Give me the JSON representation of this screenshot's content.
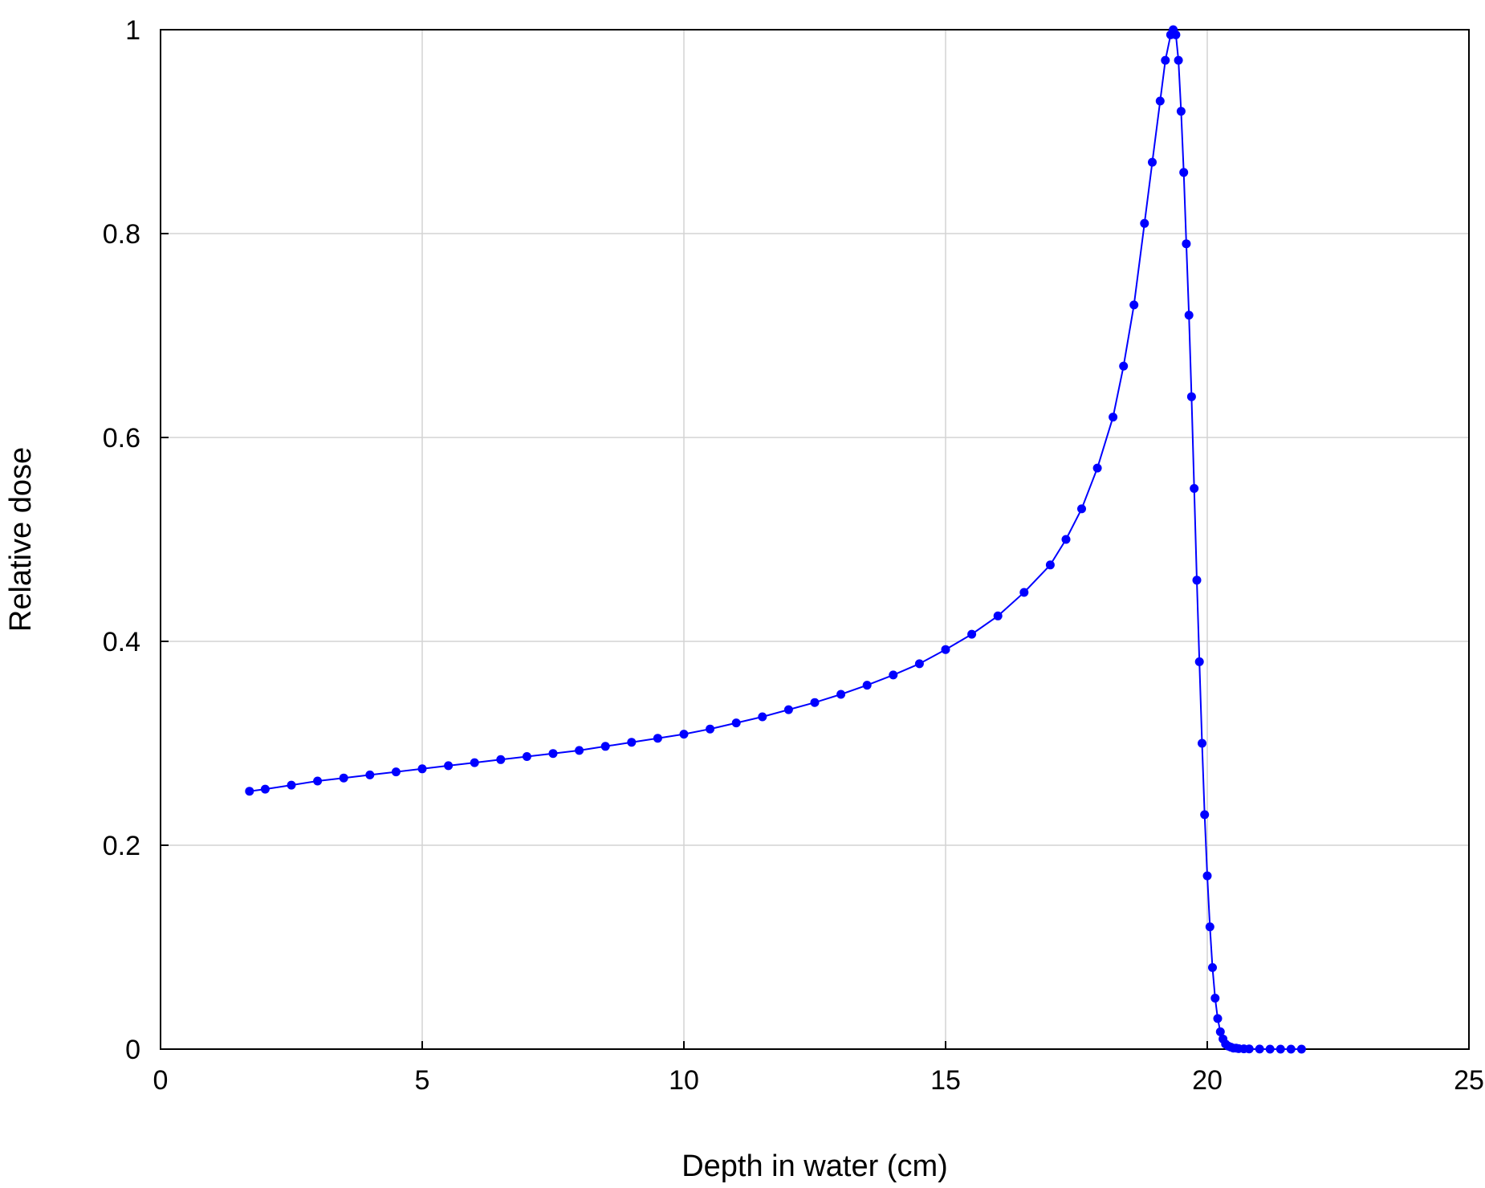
{
  "chart_data": {
    "type": "line",
    "title": "",
    "xlabel": "Depth in water (cm)",
    "ylabel": "Relative dose",
    "xlim": [
      0,
      25
    ],
    "ylim": [
      0,
      1
    ],
    "x_ticks": [
      "0",
      "5",
      "10",
      "15",
      "20",
      "25"
    ],
    "y_ticks": [
      "0",
      "0.2",
      "0.4",
      "0.6",
      "0.8",
      "1"
    ],
    "grid": true,
    "legend": "none",
    "series": [
      {
        "color": "#0000ff",
        "marker": "dot",
        "x": [
          1.7,
          2.0,
          2.5,
          3.0,
          3.5,
          4.0,
          4.5,
          5.0,
          5.5,
          6.0,
          6.5,
          7.0,
          7.5,
          8.0,
          8.5,
          9.0,
          9.5,
          10.0,
          10.5,
          11.0,
          11.5,
          12.0,
          12.5,
          13.0,
          13.5,
          14.0,
          14.5,
          15.0,
          15.5,
          16.0,
          16.5,
          17.0,
          17.3,
          17.6,
          17.9,
          18.2,
          18.4,
          18.6,
          18.8,
          18.95,
          19.1,
          19.2,
          19.3,
          19.35,
          19.4,
          19.45,
          19.5,
          19.55,
          19.6,
          19.65,
          19.7,
          19.75,
          19.8,
          19.85,
          19.9,
          19.95,
          20.0,
          20.05,
          20.1,
          20.15,
          20.2,
          20.25,
          20.3,
          20.35,
          20.4,
          20.45,
          20.5,
          20.55,
          20.6,
          20.7,
          20.8,
          21.0,
          21.2,
          21.4,
          21.6,
          21.8
        ],
        "y": [
          0.253,
          0.255,
          0.259,
          0.263,
          0.266,
          0.269,
          0.272,
          0.275,
          0.278,
          0.281,
          0.284,
          0.287,
          0.29,
          0.293,
          0.297,
          0.301,
          0.305,
          0.309,
          0.314,
          0.32,
          0.326,
          0.333,
          0.34,
          0.348,
          0.357,
          0.367,
          0.378,
          0.392,
          0.407,
          0.425,
          0.448,
          0.475,
          0.5,
          0.53,
          0.57,
          0.62,
          0.67,
          0.73,
          0.81,
          0.87,
          0.93,
          0.97,
          0.995,
          1.0,
          0.995,
          0.97,
          0.92,
          0.86,
          0.79,
          0.72,
          0.64,
          0.55,
          0.46,
          0.38,
          0.3,
          0.23,
          0.17,
          0.12,
          0.08,
          0.05,
          0.03,
          0.017,
          0.01,
          0.005,
          0.003,
          0.002,
          0.001,
          0.001,
          0.0005,
          0.0003,
          0.0002,
          0.0001,
          0.0,
          0.0,
          0.0,
          0.0
        ]
      }
    ]
  }
}
